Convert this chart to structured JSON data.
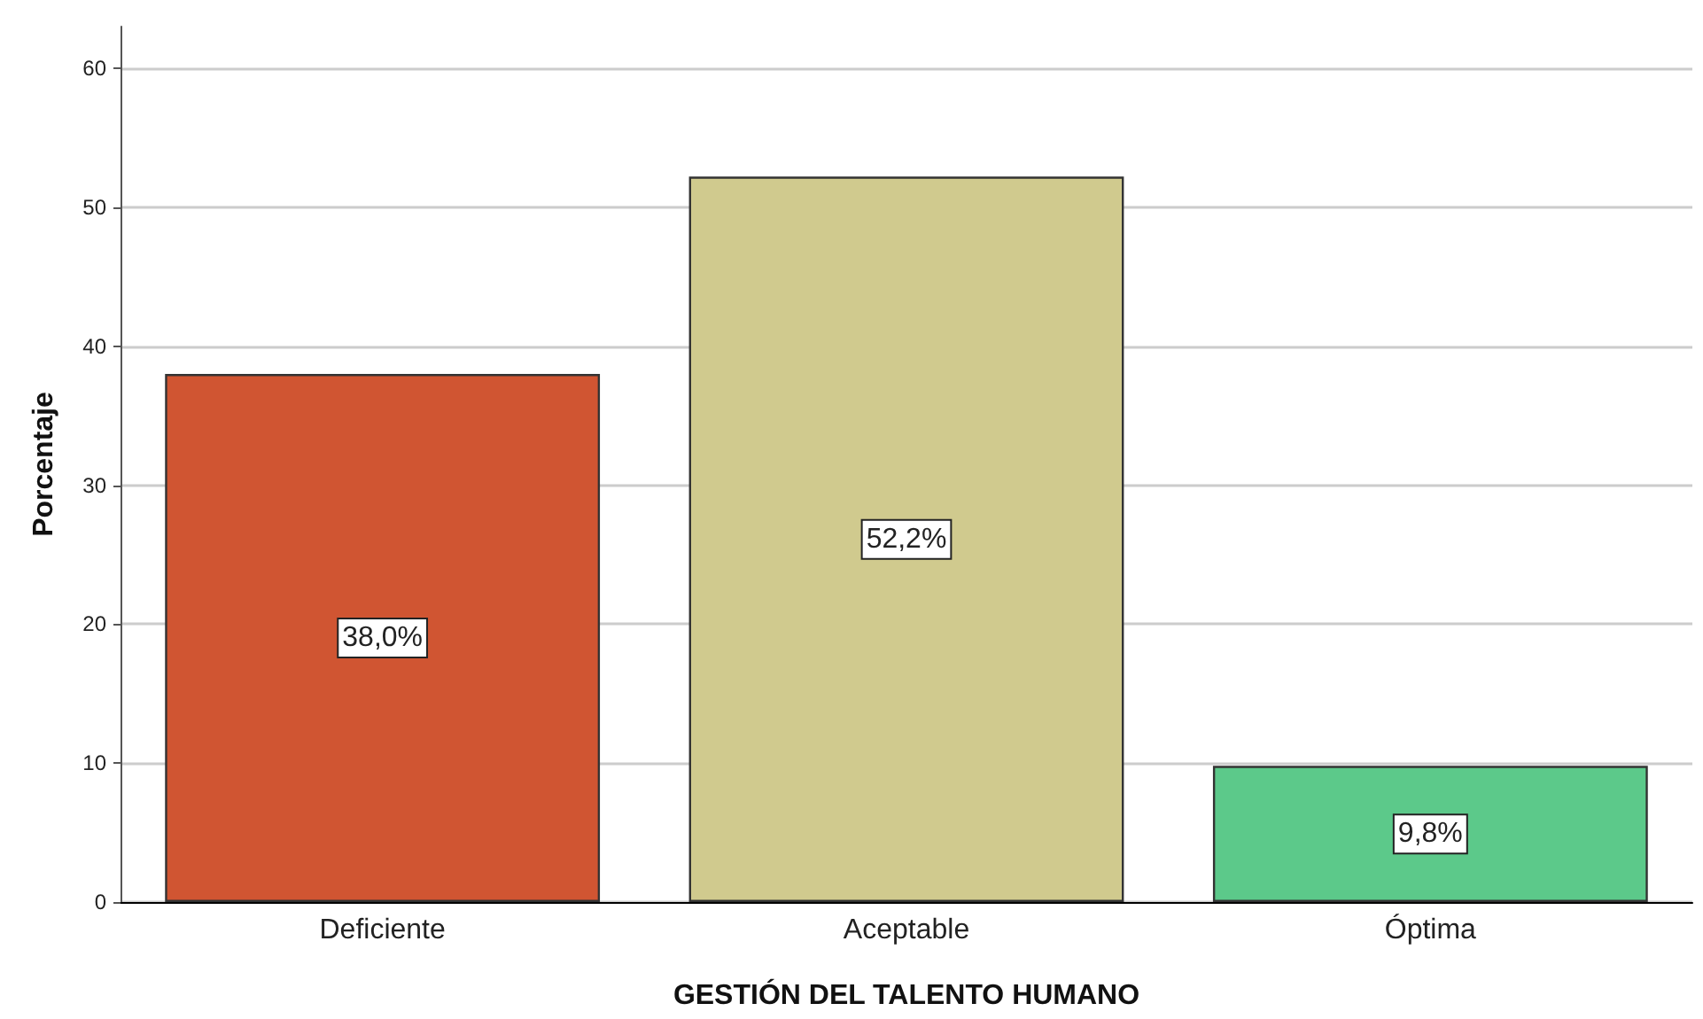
{
  "chart_data": {
    "type": "bar",
    "xlabel": "GESTIÓN DEL TALENTO HUMANO",
    "ylabel": "Porcentaje",
    "categories": [
      "Deficiente",
      "Aceptable",
      "Óptima"
    ],
    "values": [
      38.0,
      52.2,
      9.8
    ],
    "colors": [
      "#d05532",
      "#d0ca8e",
      "#5cc98a"
    ],
    "value_labels": [
      "38,0%",
      "52,2%",
      "9,8%"
    ],
    "ylim": [
      0,
      63
    ],
    "yticks": [
      0,
      10,
      20,
      30,
      40,
      50,
      60
    ],
    "grid": "y"
  }
}
